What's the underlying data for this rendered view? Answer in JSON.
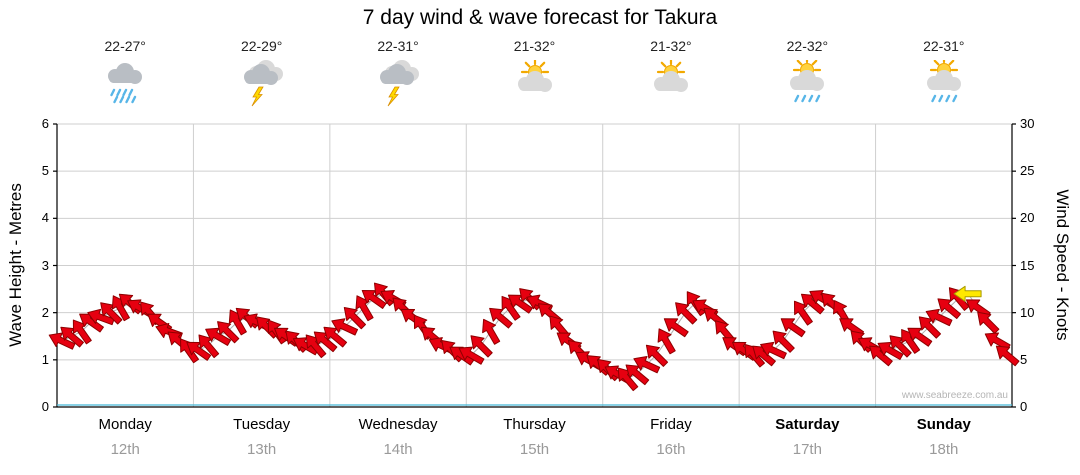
{
  "title": "7 day wind & wave forecast for Takura",
  "watermark": "www.seabreeze.com.au",
  "axes": {
    "left_label": "Wave Height - Metres",
    "right_label": "Wind Speed - Knots",
    "left_ticks": [
      0,
      1,
      2,
      3,
      4,
      5,
      6
    ],
    "right_ticks": [
      0,
      5,
      10,
      15,
      20,
      25,
      30
    ]
  },
  "days": [
    {
      "name": "Monday",
      "date": "12th",
      "temp": "22-27°",
      "icon": "rain",
      "bold": false
    },
    {
      "name": "Tuesday",
      "date": "13th",
      "temp": "22-29°",
      "icon": "storm",
      "bold": false
    },
    {
      "name": "Wednesday",
      "date": "14th",
      "temp": "22-31°",
      "icon": "storm",
      "bold": false
    },
    {
      "name": "Thursday",
      "date": "15th",
      "temp": "21-32°",
      "icon": "partly-sunny",
      "bold": false
    },
    {
      "name": "Friday",
      "date": "16th",
      "temp": "21-32°",
      "icon": "partly-sunny",
      "bold": false
    },
    {
      "name": "Saturday",
      "date": "17th",
      "temp": "22-32°",
      "icon": "sun-shower",
      "bold": true
    },
    {
      "name": "Sunday",
      "date": "18th",
      "temp": "22-31°",
      "icon": "sun-shower",
      "bold": true
    }
  ],
  "chart_data": {
    "type": "scatter",
    "title": "7 day wind & wave forecast for Takura",
    "xlabel": "",
    "ylabel": "Wave Height - Metres (left) / Wind Speed - Knots (right)",
    "ylim_left": [
      0,
      6
    ],
    "ylim_right": [
      0,
      30
    ],
    "grid": true,
    "points_per_day": 14,
    "categories": [
      "Monday 12th",
      "Tuesday 13th",
      "Wednesday 14th",
      "Thursday 15th",
      "Friday 16th",
      "Saturday 17th",
      "Sunday 18th"
    ],
    "wind_speed_knots": [
      7,
      7.5,
      8,
      9,
      9.5,
      10,
      10.5,
      11,
      10.5,
      10,
      9,
      8,
      7,
      6,
      6,
      6.5,
      7.5,
      8,
      9,
      9.5,
      9,
      8.5,
      8,
      7.5,
      7,
      6.5,
      6.5,
      7,
      7.5,
      8.5,
      9.5,
      10.5,
      11.5,
      12,
      11.5,
      10.5,
      9.5,
      8.5,
      7.5,
      6.5,
      6,
      5.5,
      5.5,
      6.5,
      8,
      9.5,
      10.5,
      11,
      11.5,
      11,
      10,
      8.5,
      7,
      6,
      5,
      4.5,
      4,
      3.5,
      3,
      3.5,
      4.5,
      5.5,
      7,
      8.5,
      10,
      11,
      10.5,
      9.5,
      8,
      6.5,
      6,
      5.5,
      5.5,
      6,
      7,
      8.5,
      10,
      11,
      11.5,
      11,
      10,
      8.5,
      7,
      6.5,
      5.5,
      6,
      6.5,
      7,
      7.5,
      8.5,
      9.5,
      10.5,
      11.5,
      12,
      10.5,
      9,
      7,
      5.5
    ],
    "wind_dir_deg": [
      205,
      220,
      235,
      215,
      200,
      225,
      240,
      220,
      210,
      230,
      215,
      200,
      220,
      235,
      215,
      230,
      210,
      225,
      240,
      220,
      205,
      225,
      235,
      215,
      225,
      210,
      230,
      220,
      220,
      205,
      225,
      240,
      215,
      230,
      210,
      225,
      215,
      235,
      220,
      205,
      225,
      215,
      210,
      225,
      240,
      220,
      235,
      215,
      225,
      205,
      220,
      230,
      215,
      225,
      210,
      220,
      225,
      210,
      230,
      220,
      205,
      225,
      240,
      215,
      225,
      235,
      210,
      220,
      230,
      215,
      215,
      230,
      220,
      205,
      225,
      215,
      235,
      220,
      210,
      225,
      240,
      215,
      225,
      210,
      220,
      210,
      225,
      235,
      215,
      225,
      205,
      220,
      230,
      180,
      215,
      225,
      210,
      220
    ],
    "wave_height_m": [
      1.4,
      1.5,
      1.6,
      1.8,
      1.9,
      2.0,
      2.1,
      2.2,
      2.1,
      2.0,
      1.8,
      1.6,
      1.4,
      1.2,
      1.2,
      1.3,
      1.5,
      1.6,
      1.8,
      1.9,
      1.8,
      1.7,
      1.6,
      1.5,
      1.4,
      1.3,
      1.3,
      1.4,
      1.5,
      1.7,
      1.9,
      2.1,
      2.3,
      2.4,
      2.3,
      2.1,
      1.9,
      1.7,
      1.5,
      1.3,
      1.2,
      1.1,
      1.1,
      1.3,
      1.6,
      1.9,
      2.1,
      2.2,
      2.3,
      2.2,
      2.0,
      1.7,
      1.4,
      1.2,
      1.0,
      0.9,
      0.8,
      0.7,
      0.6,
      0.7,
      0.9,
      1.1,
      1.4,
      1.7,
      2.0,
      2.2,
      2.1,
      1.9,
      1.6,
      1.3,
      1.2,
      1.1,
      1.1,
      1.2,
      1.4,
      1.7,
      2.0,
      2.2,
      2.3,
      2.2,
      2.0,
      1.7,
      1.4,
      1.3,
      1.1,
      1.2,
      1.3,
      1.4,
      1.5,
      1.7,
      1.9,
      2.1,
      2.3,
      2.4,
      2.1,
      1.8,
      1.4,
      1.1
    ],
    "highlight_index": 93,
    "arrow_color": "#e60010",
    "arrow_stroke": "#8f0000",
    "highlight_color": "#ffe800",
    "highlight_stroke": "#a89a00",
    "grid_color": "#cfcfcf",
    "axis_color": "#000000",
    "sea_line_color": "#45b8d6",
    "wave_line_color": "#9a9a9a"
  }
}
